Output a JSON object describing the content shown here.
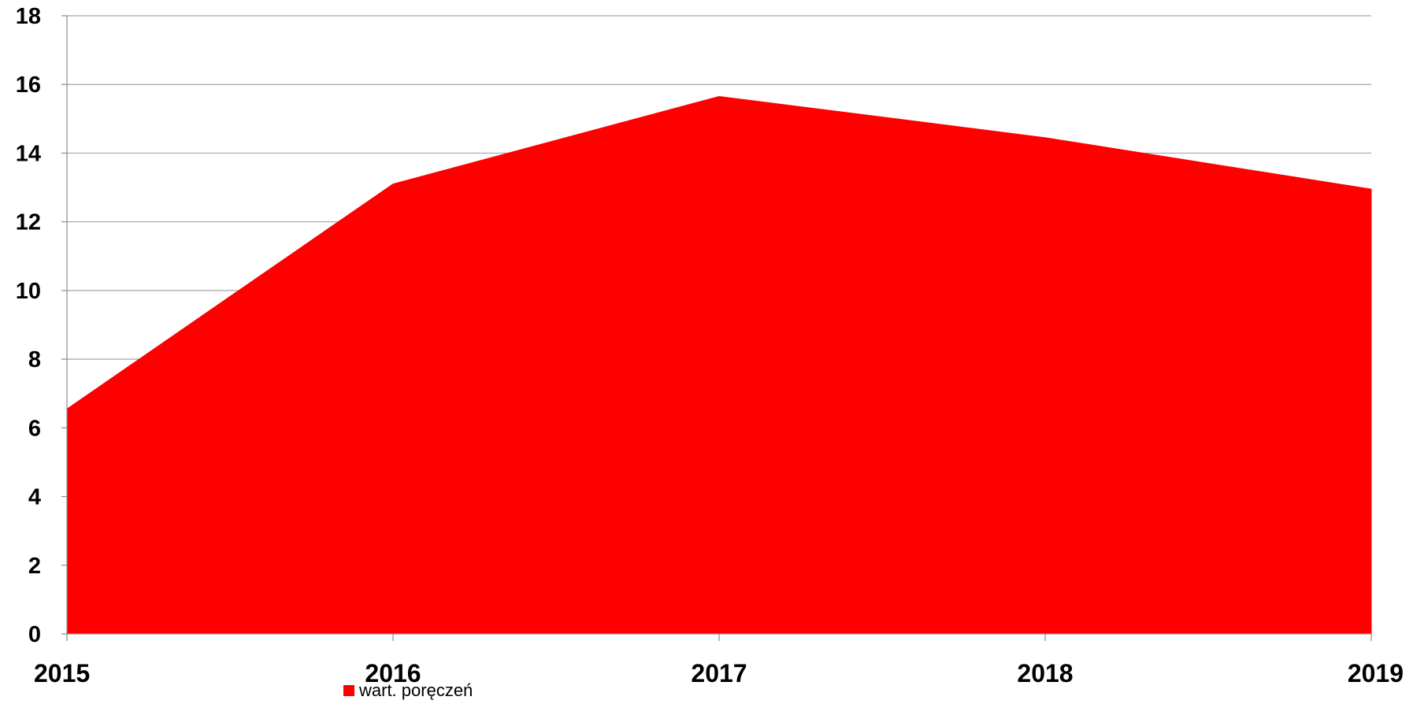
{
  "chart_data": {
    "type": "area",
    "title": "",
    "xlabel": "",
    "ylabel": "",
    "x": [
      "2015",
      "2016",
      "2017",
      "2018",
      "2019"
    ],
    "series": [
      {
        "name": "wart. poręczeń",
        "values": [
          6.55,
          13.1,
          15.65,
          14.45,
          12.95
        ],
        "color": "#ff0000"
      }
    ],
    "ylim": [
      0,
      18
    ],
    "yticks": [
      "0",
      "2",
      "4",
      "6",
      "8",
      "10",
      "12",
      "14",
      "16",
      "18"
    ],
    "grid": true,
    "legend_position": "bottom"
  }
}
